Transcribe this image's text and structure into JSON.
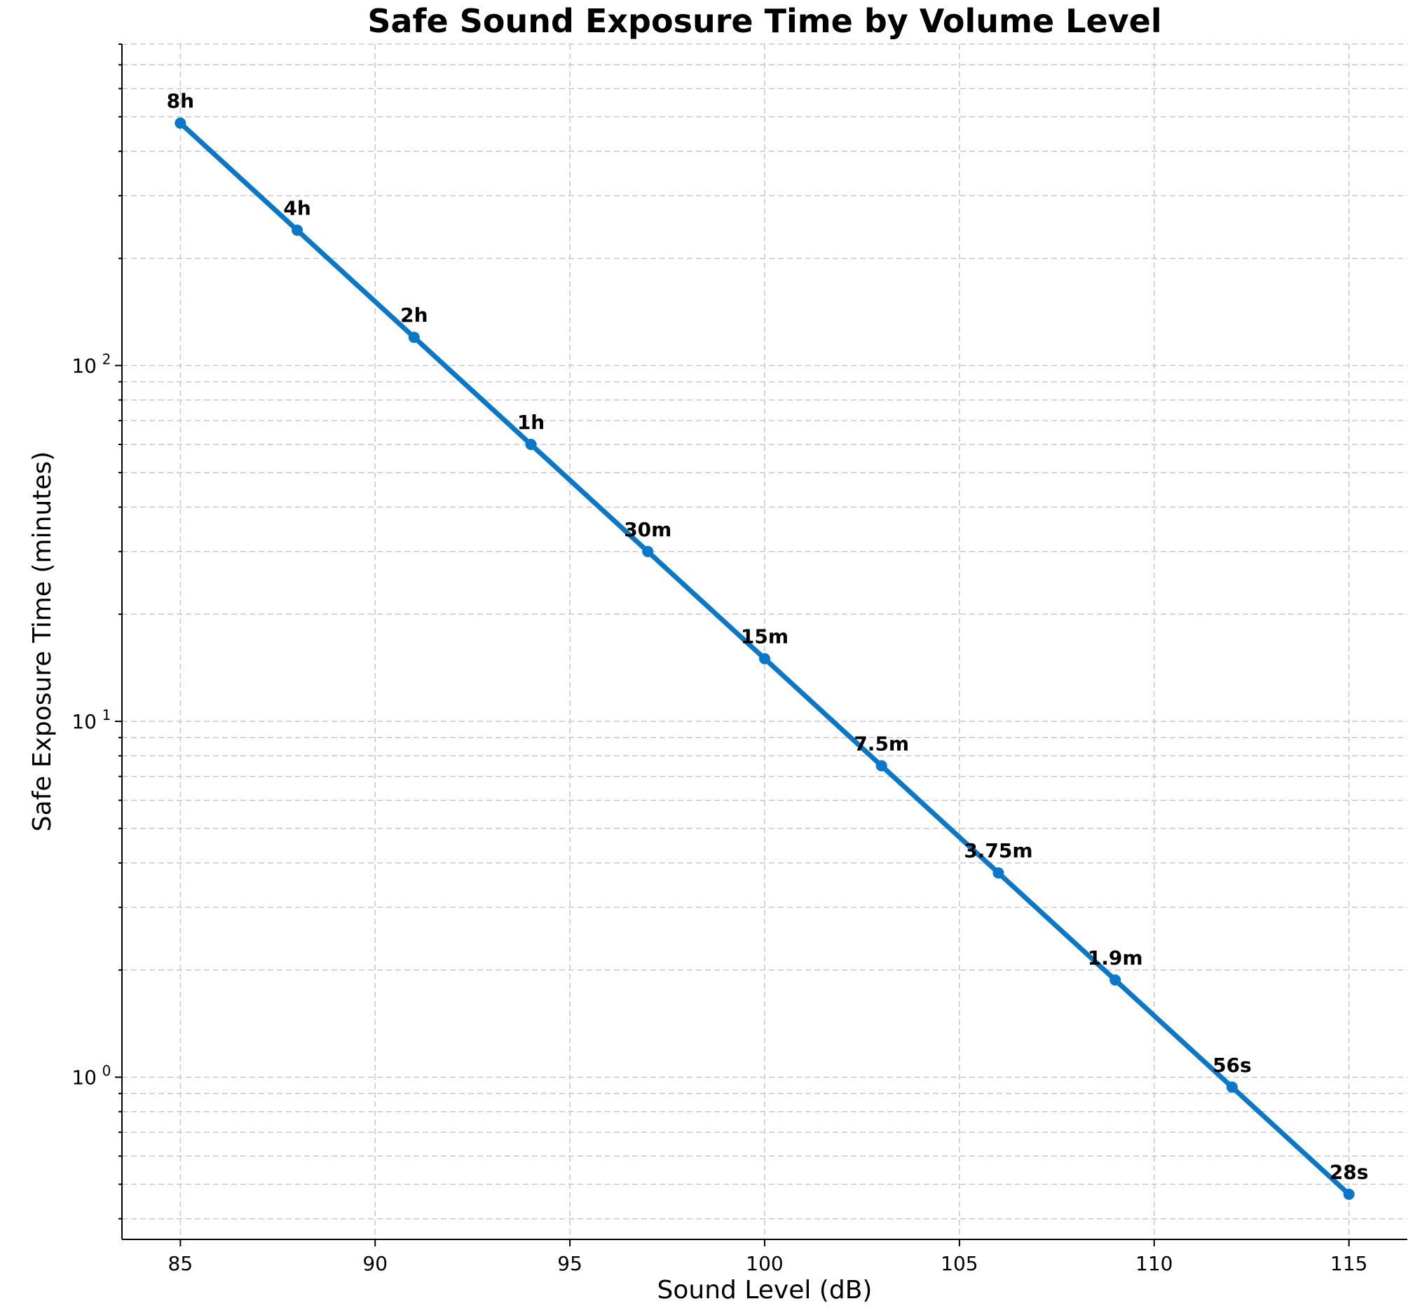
{
  "chart_data": {
    "type": "line",
    "title": "Safe Sound Exposure Time by Volume Level",
    "xlabel": "Sound Level (dB)",
    "ylabel": "Safe Exposure Time (minutes)",
    "y_scale": "log",
    "grid": true,
    "xlim": [
      83.5,
      116.5
    ],
    "ylim": [
      0.35,
      800
    ],
    "x_ticks": [
      85,
      90,
      95,
      100,
      105,
      110,
      115
    ],
    "y_major_ticks": [
      {
        "value": 1,
        "base": "10",
        "exp": "0"
      },
      {
        "value": 10,
        "base": "10",
        "exp": "1"
      },
      {
        "value": 100,
        "base": "10",
        "exp": "2"
      }
    ],
    "color": "#0a77c8",
    "x": [
      85,
      88,
      91,
      94,
      97,
      100,
      103,
      106,
      109,
      112,
      115
    ],
    "y": [
      480,
      240,
      120,
      60,
      30,
      15,
      7.5,
      3.75,
      1.875,
      0.9375,
      0.46875
    ],
    "point_labels": [
      "8h",
      "4h",
      "2h",
      "1h",
      "30m",
      "15m",
      "7.5m",
      "3.75m",
      "1.9m",
      "56s",
      "28s"
    ]
  }
}
